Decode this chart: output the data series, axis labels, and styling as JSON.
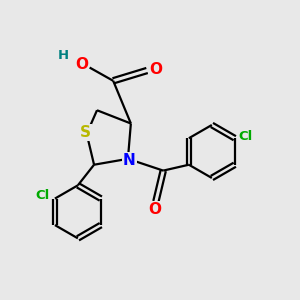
{
  "bg_color": "#e8e8e8",
  "bond_color": "#000000",
  "atom_colors": {
    "S": "#b8b800",
    "N": "#0000ff",
    "O": "#ff0000",
    "Cl": "#00aa00",
    "H": "#008080",
    "C": "#000000"
  },
  "figsize": [
    3.0,
    3.0
  ],
  "dpi": 100,
  "lw": 1.6,
  "fs_large": 11,
  "fs_small": 9.5
}
